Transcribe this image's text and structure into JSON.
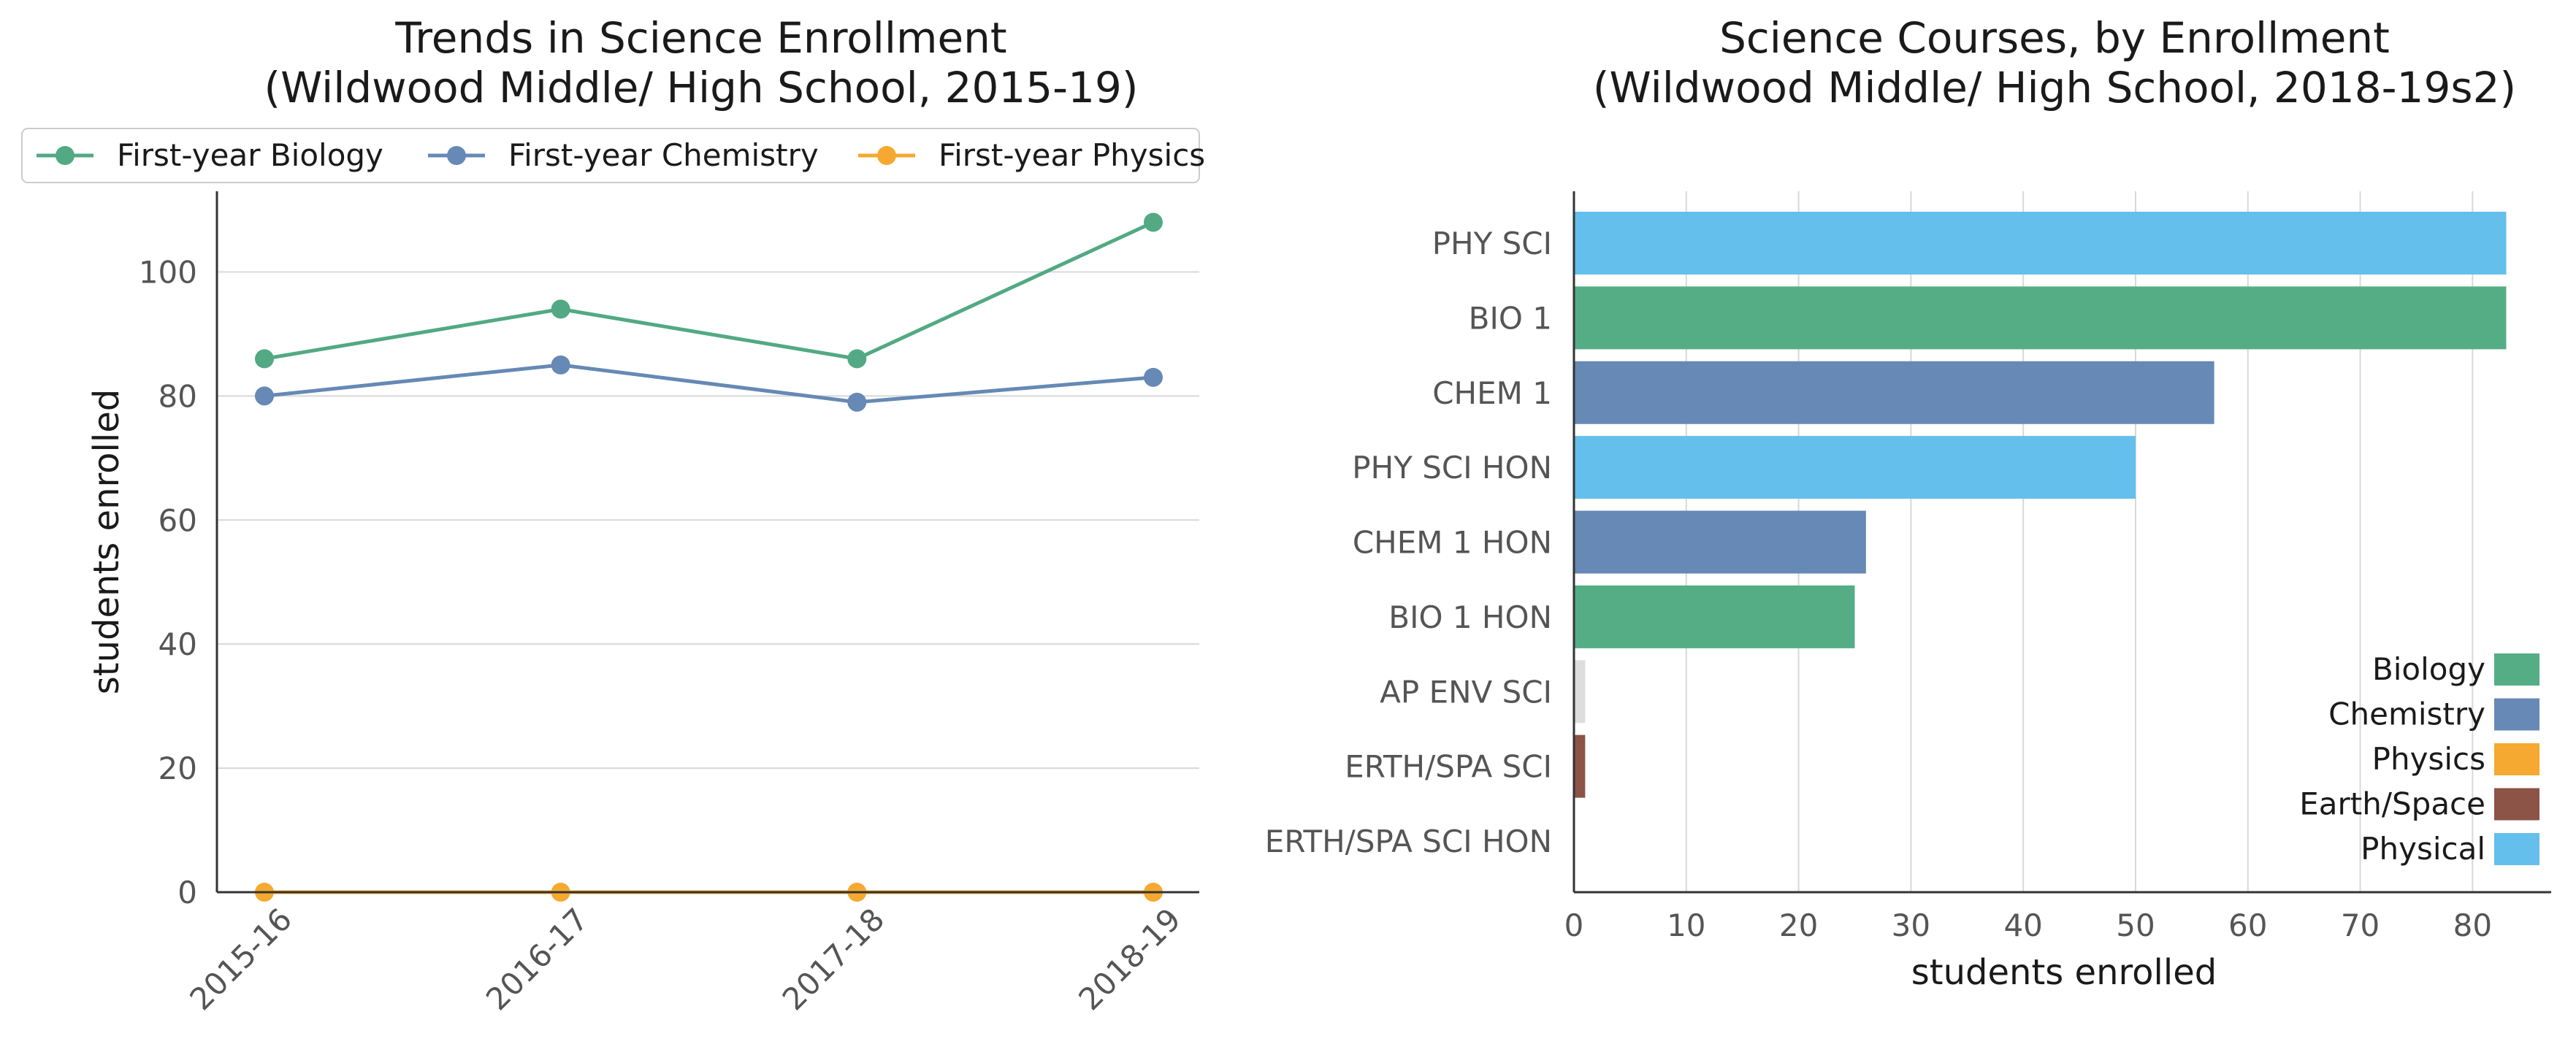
{
  "chart_data": [
    {
      "type": "line",
      "title_lines": [
        "Trends in Science Enrollment",
        "(Wildwood Middle/ High School, 2015-19)"
      ],
      "xlabel": "",
      "ylabel": "students enrolled",
      "categories": [
        "2015-16",
        "2016-17",
        "2017-18",
        "2018-19"
      ],
      "ylim": [
        0,
        113
      ],
      "yticks": [
        0,
        20,
        40,
        60,
        80,
        100
      ],
      "grid": "horizontal",
      "legend_position": "top, above plot",
      "series": [
        {
          "name": "First-year Biology",
          "values": [
            86,
            94,
            86,
            108
          ],
          "color": "#52a983"
        },
        {
          "name": "First-year Chemistry",
          "values": [
            80,
            85,
            79,
            83
          ],
          "color": "#6689b5"
        },
        {
          "name": "First-year Physics",
          "values": [
            0,
            0,
            0,
            0
          ],
          "color": "#f5a930"
        }
      ]
    },
    {
      "type": "bar",
      "orientation": "horizontal",
      "title_lines": [
        "Science Courses, by Enrollment",
        "(Wildwood Middle/ High School, 2018-19s2)"
      ],
      "xlabel": "students enrolled",
      "ylabel": "",
      "categories": [
        "PHY SCI",
        "BIO 1",
        "CHEM 1",
        "PHY SCI HON",
        "CHEM 1 HON",
        "BIO 1 HON",
        "AP ENV SCI",
        "ERTH/SPA SCI",
        "ERTH/SPA SCI HON"
      ],
      "values": [
        83,
        83,
        57,
        50,
        26,
        25,
        1,
        1,
        0
      ],
      "bar_colors": [
        "#64bfec",
        "#55ad86",
        "#6689b5",
        "#64bfec",
        "#6689b5",
        "#55ad86",
        "#dddddd",
        "#8c5347",
        "#dddddd"
      ],
      "xlim": [
        0,
        87
      ],
      "xticks": [
        0,
        10,
        20,
        30,
        40,
        50,
        60,
        70,
        80
      ],
      "grid": "vertical",
      "legend_position": "lower right",
      "legend": [
        {
          "name": "Biology",
          "color": "#55ad86"
        },
        {
          "name": "Chemistry",
          "color": "#6689b5"
        },
        {
          "name": "Physics",
          "color": "#f5a930"
        },
        {
          "name": "Earth/Space",
          "color": "#8c5347"
        },
        {
          "name": "Physical",
          "color": "#64bfec"
        }
      ]
    }
  ]
}
